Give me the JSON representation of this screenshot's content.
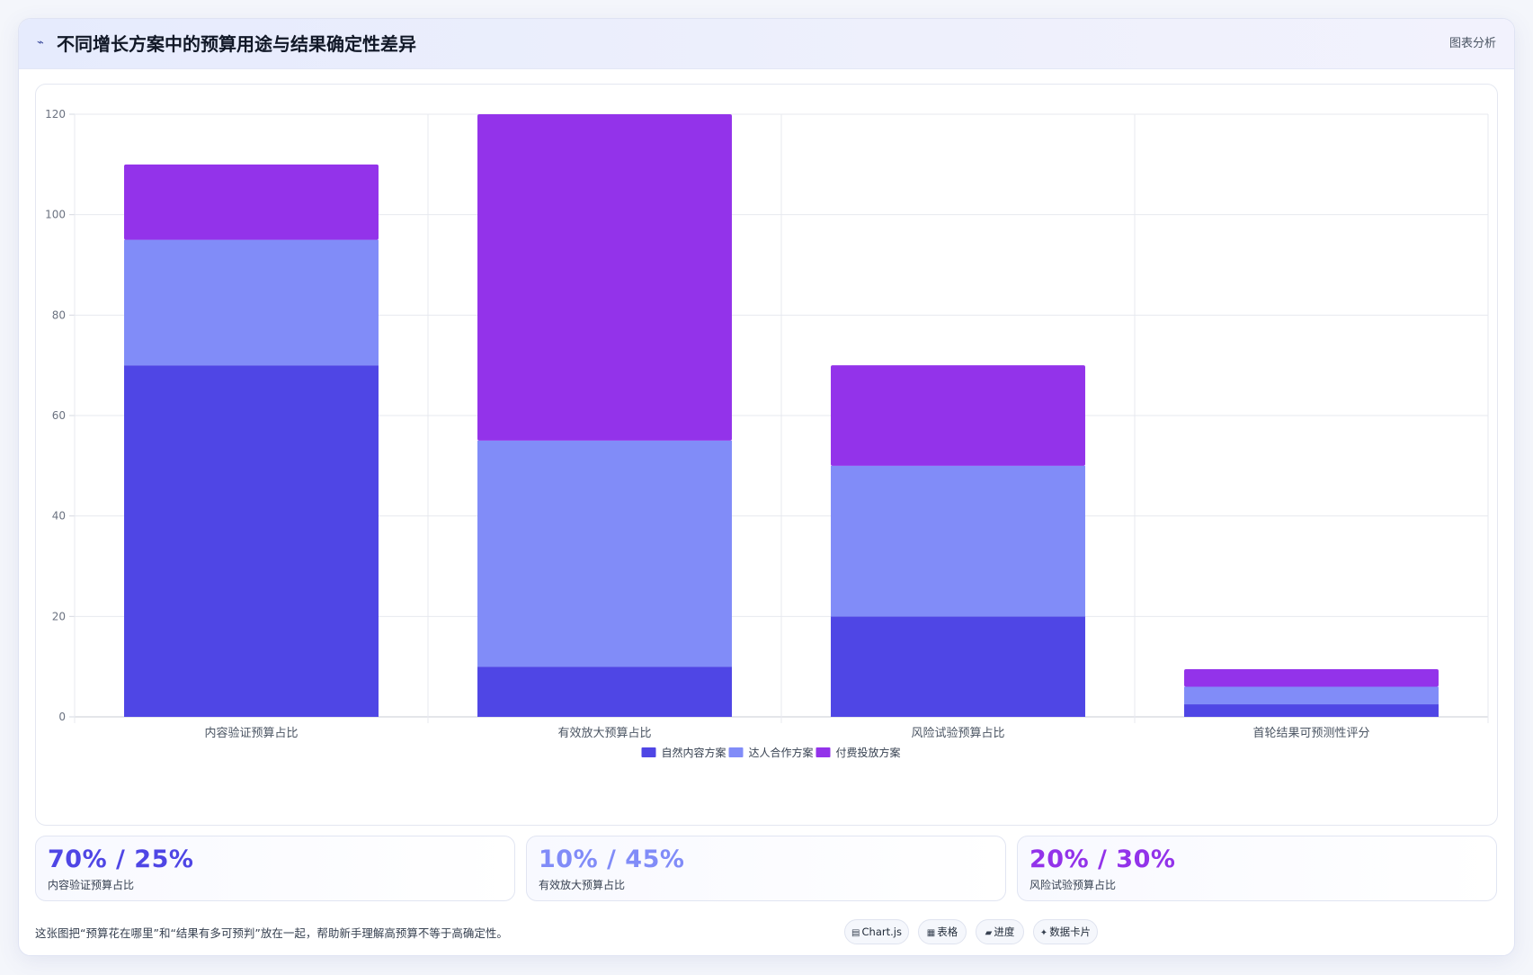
{
  "header": {
    "icon": "chart-line-icon",
    "icon_glyph": "⌁",
    "title": "不同增长方案中的预算用途与结果确定性差异",
    "action_label": "图表分析"
  },
  "chart_data": {
    "type": "bar",
    "stacked": true,
    "categories": [
      "内容验证预算占比",
      "有效放大预算占比",
      "风险试验预算占比",
      "首轮结果可预测性评分"
    ],
    "series": [
      {
        "name": "自然内容方案",
        "color": "#4f46e5",
        "values": [
          70,
          10,
          20,
          2.5
        ]
      },
      {
        "name": "达人合作方案",
        "color": "#818cf8",
        "values": [
          25,
          45,
          30,
          3.5
        ]
      },
      {
        "name": "付费投放方案",
        "color": "#9333ea",
        "values": [
          15,
          65,
          20,
          3.5
        ]
      }
    ],
    "ylim": [
      0,
      120
    ],
    "yticks": [
      0,
      20,
      40,
      60,
      80,
      100,
      120
    ],
    "grid": true,
    "legend_position": "bottom"
  },
  "stats": [
    {
      "value": "70% / 25%",
      "label": "内容验证预算占比",
      "color": "#4f46e5"
    },
    {
      "value": "10% / 45%",
      "label": "有效放大预算占比",
      "color": "#818cf8"
    },
    {
      "value": "20% / 30%",
      "label": "风险试验预算占比",
      "color": "#9333ea"
    }
  ],
  "footer": {
    "note": "这张图把“预算花在哪里”和“结果有多可预判”放在一起，帮助新手理解高预算不等于高确定性。",
    "chips": [
      {
        "icon": "chart-icon",
        "glyph": "▤",
        "label": "Chart.js"
      },
      {
        "icon": "table-icon",
        "glyph": "▦",
        "label": "表格"
      },
      {
        "icon": "progress-icon",
        "glyph": "▰",
        "label": "进度"
      },
      {
        "icon": "sparkle-icon",
        "glyph": "✦",
        "label": "数据卡片"
      }
    ]
  }
}
